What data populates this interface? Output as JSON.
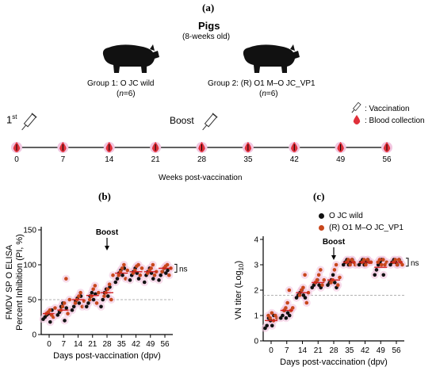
{
  "panels": {
    "a": {
      "label": "(a)",
      "title": "Pigs",
      "subtitle": "(8-weeks old)",
      "group1": {
        "line1": "Group 1: O JC wild",
        "line2_prefix": "(",
        "line2_italic": "n",
        "line2_suffix": "=6)"
      },
      "group2": {
        "line1": "Group 2: (R) O1 M–O JC_VP1",
        "line2_prefix": "(",
        "line2_italic": "n",
        "line2_suffix": "=6)"
      },
      "first_label": "1",
      "first_sup": "st",
      "boost_label": "Boost",
      "legend": {
        "vaccination": ": Vaccination",
        "blood": ": Blood collection"
      },
      "weeks": [
        "0",
        "7",
        "14",
        "21",
        "28",
        "35",
        "42",
        "49",
        "56"
      ],
      "xlabel": "Weeks post-vaccination"
    },
    "b": {
      "label": "(b)"
    },
    "c": {
      "label": "(c)"
    }
  },
  "colors": {
    "wild": "#111111",
    "vp1": "#c8471c",
    "mean": "#d11f1f",
    "highlight": "#f2c6e0",
    "drop": "#e0303a"
  },
  "chart_data": [
    {
      "type": "scatter",
      "panel": "b",
      "ylabel_line1": "FMDV SP O ELISA",
      "ylabel_line2": "Percent Inhibition (PI, %)",
      "xlabel": "Days post-vaccination (dpv)",
      "categories": [
        "0",
        "7",
        "14",
        "21",
        "28",
        "35",
        "42",
        "49",
        "56"
      ],
      "yticks": [
        "0",
        "50",
        "100",
        "150"
      ],
      "ylim": [
        0,
        150
      ],
      "cutoff": 50,
      "annotation_boost": "Boost",
      "annotation_ns": "ns",
      "series": [
        {
          "name": "O JC wild",
          "values": [
            [
              22,
              25,
              28,
              30,
              18,
              35
            ],
            [
              28,
              32,
              40,
              45,
              20,
              38
            ],
            [
              35,
              40,
              48,
              52,
              45,
              55
            ],
            [
              40,
              45,
              55,
              60,
              50,
              58
            ],
            [
              40,
              50,
              60,
              65,
              55,
              68
            ],
            [
              75,
              80,
              88,
              92,
              85,
              95
            ],
            [
              78,
              85,
              90,
              95,
              88,
              80
            ],
            [
              75,
              85,
              90,
              95,
              88,
              80
            ],
            [
              78,
              85,
              90,
              95,
              88,
              92
            ]
          ]
        },
        {
          "name": "(R) O1 M–O JC_VP1",
          "values": [
            [
              30,
              32,
              35,
              28,
              25,
              38
            ],
            [
              35,
              40,
              45,
              80,
              30,
              50
            ],
            [
              45,
              50,
              55,
              60,
              40,
              48
            ],
            [
              50,
              55,
              65,
              70,
              45,
              60
            ],
            [
              55,
              60,
              65,
              72,
              50,
              85
            ],
            [
              85,
              90,
              95,
              100,
              80,
              92
            ],
            [
              88,
              92,
              98,
              100,
              85,
              95
            ],
            [
              88,
              92,
              95,
              100,
              85,
              90
            ],
            [
              90,
              95,
              98,
              100,
              85,
              95
            ]
          ]
        }
      ],
      "means": [
        30,
        35,
        50,
        56,
        60,
        88,
        90,
        90,
        95
      ]
    },
    {
      "type": "scatter",
      "panel": "c",
      "ylabel": "VN titer (Log",
      "ylabel_sub": "10",
      "ylabel_end": ")",
      "xlabel": "Days post-vaccination (dpv)",
      "categories": [
        "0",
        "7",
        "14",
        "21",
        "28",
        "35",
        "42",
        "49",
        "56"
      ],
      "yticks": [
        "0",
        "1",
        "2",
        "3",
        "4"
      ],
      "ylim": [
        0,
        4
      ],
      "cutoff": 1.8,
      "annotation_boost": "Boost",
      "annotation_ns": "ns",
      "series": [
        {
          "name": "O JC wild",
          "values": [
            [
              0.5,
              0.6,
              0.9,
              0.8,
              0.6,
              1.0
            ],
            [
              0.9,
              1.0,
              1.2,
              0.9,
              1.1,
              1.0
            ],
            [
              1.7,
              1.8,
              1.9,
              2.0,
              1.8,
              1.7
            ],
            [
              2.1,
              2.2,
              2.3,
              2.4,
              2.2,
              2.1
            ],
            [
              2.2,
              2.3,
              2.4,
              2.6,
              2.3,
              2.1
            ],
            [
              3.0,
              3.1,
              3.2,
              3.0,
              3.1,
              3.2
            ],
            [
              3.0,
              3.1,
              3.2,
              3.0,
              3.1,
              3.2
            ],
            [
              2.6,
              2.8,
              3.0,
              3.1,
              3.2,
              2.6
            ],
            [
              3.0,
              3.1,
              3.2,
              3.1,
              3.0,
              3.2
            ]
          ]
        },
        {
          "name": "(R) O1 M–O JC_VP1",
          "values": [
            [
              1.0,
              0.9,
              1.1,
              0.8,
              1.0,
              0.9
            ],
            [
              1.2,
              1.3,
              1.5,
              2.0,
              1.2,
              1.3
            ],
            [
              1.8,
              2.0,
              2.1,
              2.6,
              1.5,
              1.9
            ],
            [
              2.3,
              2.4,
              2.6,
              2.8,
              2.2,
              2.4
            ],
            [
              2.3,
              2.4,
              2.8,
              3.0,
              2.2,
              2.5
            ],
            [
              3.1,
              3.2,
              3.0,
              3.2,
              3.1,
              3.0
            ],
            [
              3.1,
              3.2,
              3.0,
              3.2,
              3.1,
              3.1
            ],
            [
              3.1,
              3.2,
              3.0,
              3.2,
              3.0,
              3.1
            ],
            [
              3.1,
              3.2,
              3.0,
              3.2,
              3.1,
              3.0
            ]
          ]
        }
      ],
      "means": [
        0.8,
        1.2,
        1.9,
        2.3,
        2.4,
        3.1,
        3.1,
        2.9,
        3.1
      ]
    }
  ]
}
